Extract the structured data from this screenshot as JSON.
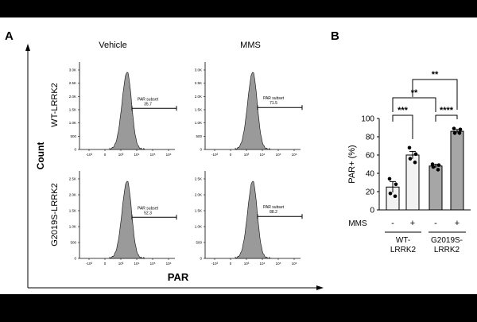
{
  "panel_a": {
    "label": "A",
    "columns": [
      "Vehicle",
      "MMS"
    ],
    "rows": [
      "WT-LRRK2",
      "G2019S-LRRK2"
    ],
    "y_title": "Count",
    "x_title": "PAR",
    "gate_label": "PAR subset",
    "gates": [
      [
        "35.7",
        "71.5"
      ],
      [
        "52.3",
        "88.2"
      ]
    ],
    "y_ticks": [
      [
        "3.0K",
        "2.5K",
        "2.0K",
        "1.5K",
        "1.0K",
        "500",
        "0"
      ],
      [
        "2.5K",
        "2.0K",
        "1.5K",
        "1.0K",
        "500",
        "0"
      ]
    ],
    "x_ticks": [
      "-10³",
      "0",
      "10³",
      "10⁴",
      "10⁵",
      "10⁶"
    ],
    "colors": {
      "fill": "#9a9a9a",
      "stroke": "#222222"
    }
  },
  "panel_b": {
    "label": "B",
    "sig_wt": "***",
    "sig_g2019s": "****",
    "sig_vehicle": "**",
    "sig_mms": "**",
    "mms_label": "MMS",
    "mms_signs": [
      "-",
      "+",
      "-",
      "+"
    ],
    "groups": [
      "WT-\nLRRK2",
      "G2019S-\nLRRK2"
    ],
    "colors": {
      "light": "#f2f2f2",
      "dark": "#a6a6a6",
      "edge": "#000000"
    }
  },
  "chart_data": {
    "type": "bar",
    "ylabel": "PAR+ (%)",
    "ylim": [
      0,
      100
    ],
    "yticks": [
      "0",
      "20",
      "40",
      "60",
      "80",
      "100"
    ],
    "categories": [
      "WT-LRRK2 -",
      "WT-LRRK2 +",
      "G2019S-LRRK2 -",
      "G2019S-LRRK2 +"
    ],
    "values": [
      25,
      60,
      48,
      86
    ],
    "errors": [
      6,
      4,
      2,
      2
    ],
    "points": [
      [
        34,
        28,
        18,
        15
      ],
      [
        68,
        61,
        56,
        52
      ],
      [
        50,
        49,
        47,
        44
      ],
      [
        89,
        88,
        84,
        84
      ]
    ]
  }
}
